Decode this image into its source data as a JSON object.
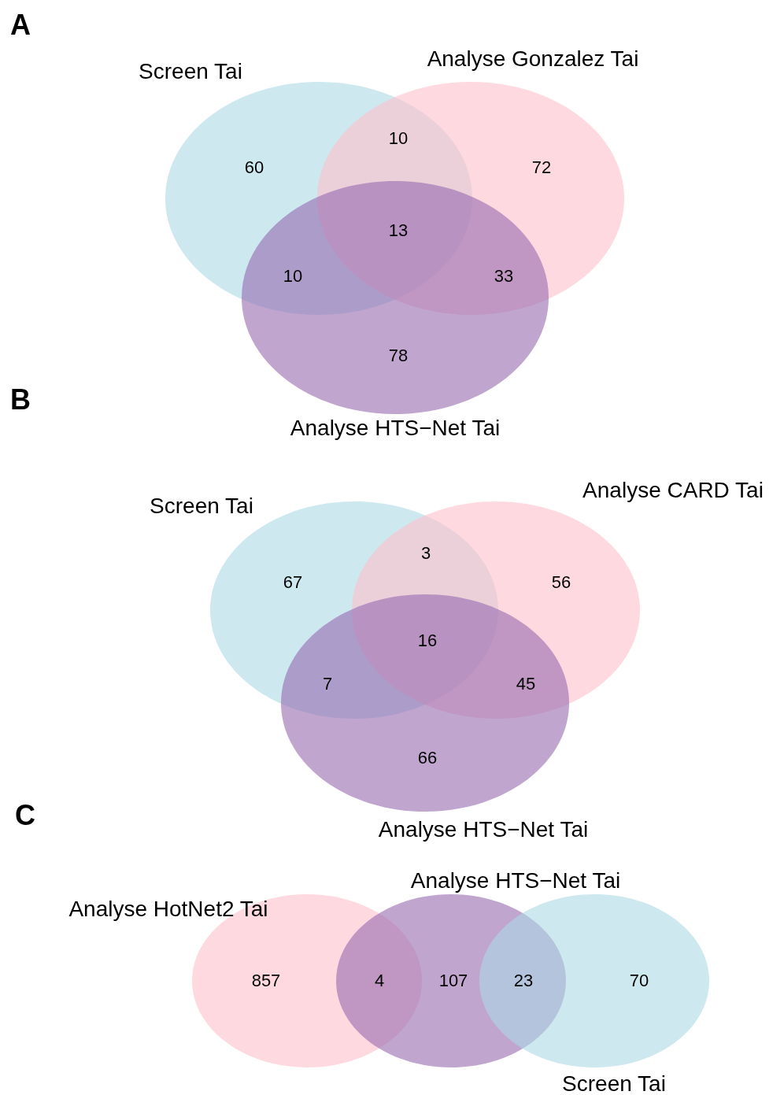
{
  "chart_data": [
    {
      "type": "other",
      "title": "A",
      "data_labels": true,
      "annotations": [
        "Screen Tai",
        "Analyse Gonzalez Tai",
        "Analyse HTS−Net Tai"
      ],
      "values": [
        10,
        60,
        72,
        13,
        10,
        33,
        78
      ]
    },
    {
      "type": "other",
      "title": "B",
      "data_labels": true,
      "annotations": [
        "Screen Tai",
        "Analyse CARD Tai",
        "Analyse HTS−Net Tai"
      ],
      "values": [
        3,
        67,
        56,
        16,
        7,
        45,
        66
      ]
    },
    {
      "type": "other",
      "title": "C",
      "data_labels": true,
      "annotations": [
        "Analyse HotNet2 Tai",
        "Analyse HTS−Net Tai",
        "Screen Tai"
      ],
      "values": [
        857,
        4,
        107,
        23,
        70
      ]
    }
  ]
}
